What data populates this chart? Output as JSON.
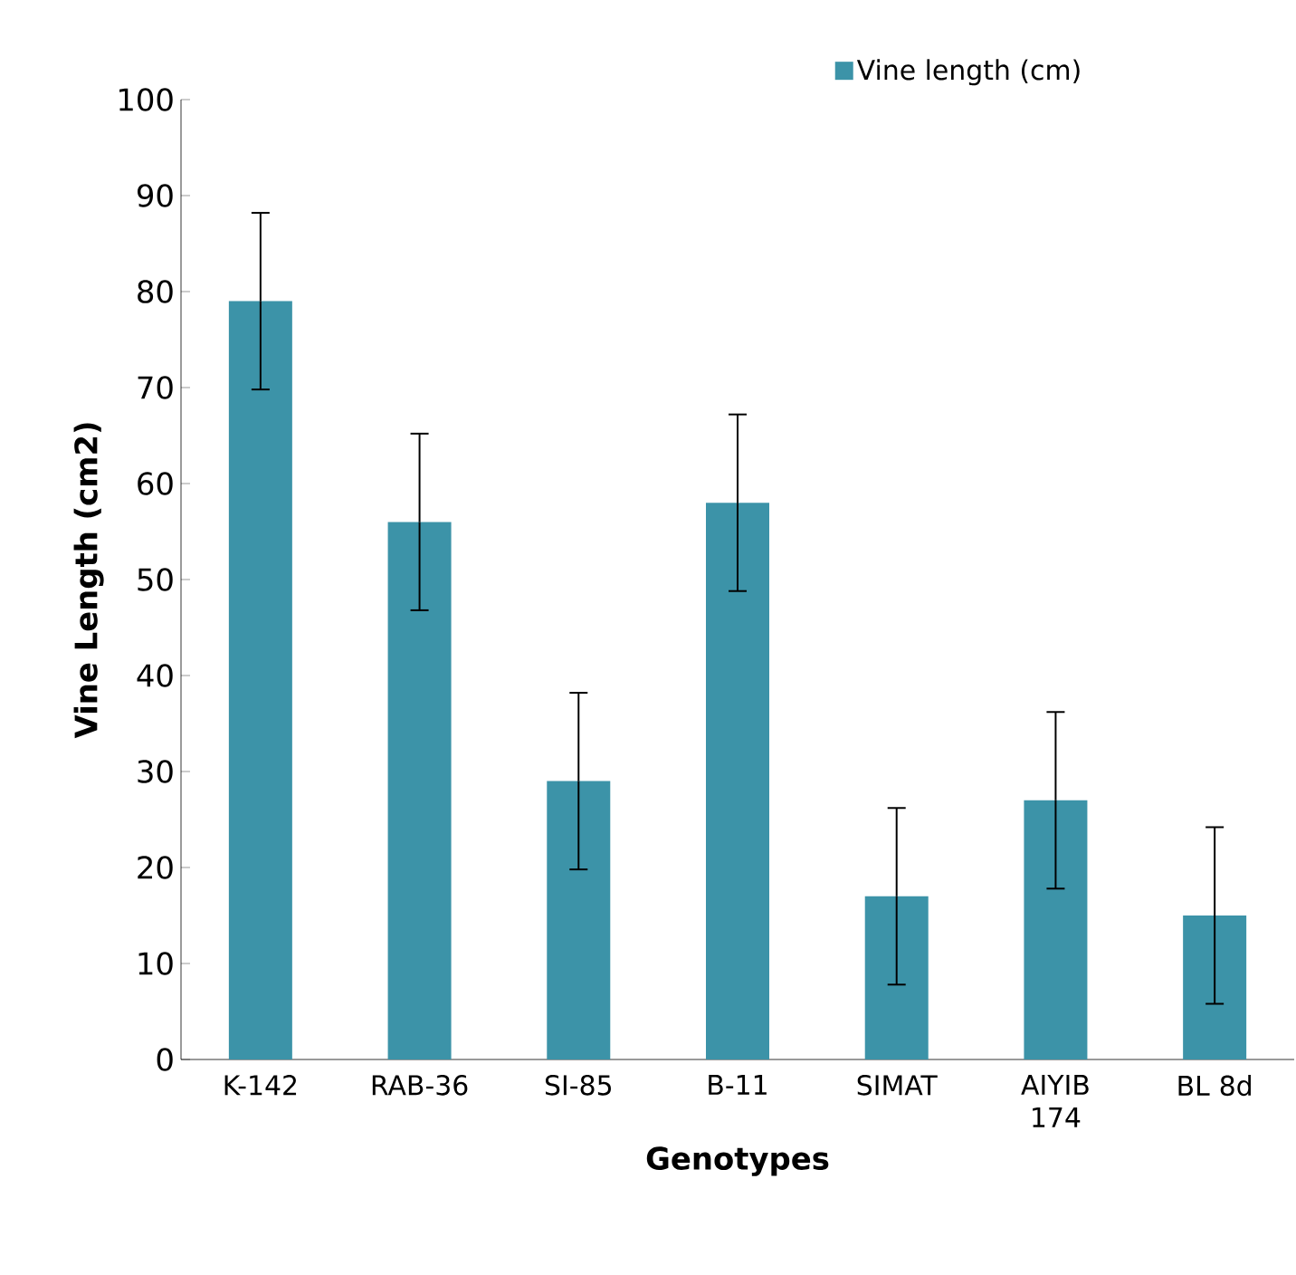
{
  "chart_data": {
    "type": "bar",
    "xlabel": "Genotypes",
    "ylabel": "Vine Length  (cm2)",
    "categories": [
      "K-142",
      "RAB-36",
      "SI-85",
      "B-11",
      "SIMAT",
      "AIYIB 174",
      "BL 8d"
    ],
    "series": [
      {
        "name": "Vine length (cm)",
        "color": "#3c93a8",
        "values": [
          79,
          56,
          29,
          58,
          17,
          27,
          15
        ],
        "errors": [
          9.2,
          9.2,
          9.2,
          9.2,
          9.2,
          9.2,
          9.2
        ]
      }
    ],
    "ylim": [
      0,
      100
    ],
    "yticks": [
      0,
      10,
      20,
      30,
      40,
      50,
      60,
      70,
      80,
      90,
      100
    ],
    "grid": false,
    "legend": "top"
  }
}
